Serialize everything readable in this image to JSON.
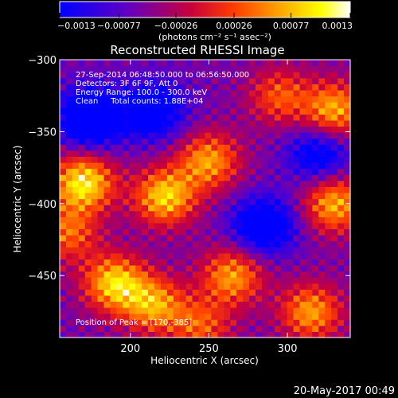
{
  "chart_data": {
    "type": "heatmap",
    "title": "Reconstructed RHESSI Image",
    "xlabel": "Heliocentric X (arcsec)",
    "ylabel": "Heliocentric Y (arcsec)",
    "xlim": [
      155,
      340
    ],
    "ylim": [
      -493,
      -300
    ],
    "x_ticks": [
      200,
      250,
      300
    ],
    "x_tick_labels": [
      "200",
      "250",
      "300"
    ],
    "y_ticks": [
      -300,
      -350,
      -400,
      -450
    ],
    "y_tick_labels": [
      "−300",
      "−350",
      "−400",
      "−450"
    ],
    "colorbar": {
      "range": [
        -0.0013,
        0.0013
      ],
      "tick_values": [
        -0.0013,
        -0.00077,
        -0.00026,
        0.00026,
        0.00077,
        0.0013
      ],
      "tick_labels": [
        "−0.0013",
        "−0.00077",
        "−0.00026",
        "0.00026",
        "0.00077",
        "0.0013"
      ],
      "unit_label": "(photons cm⁻² s⁻¹ asec⁻²)",
      "colors": [
        "#0000ff",
        "#5a00c8",
        "#c8003c",
        "#ff3c00",
        "#ffa000",
        "#ffff00",
        "#ffffff"
      ]
    },
    "annotations": [
      "27-Sep-2014 06:48:50.000 to 06:56:50.000",
      "Detectors: 3F 6F 9F, Att 0",
      "Energy Range: 100.0 - 300.0 keV",
      "Clean     Total counts: 1.88E+04"
    ],
    "peak_label": "Position of Peak = [170,-385]",
    "peak": [
      170,
      -385
    ],
    "sources": [
      {
        "x": 170,
        "y": -385,
        "intensity": 1.0
      },
      {
        "x": 222,
        "y": -395,
        "intensity": 0.9
      },
      {
        "x": 250,
        "y": -370,
        "intensity": 0.75
      },
      {
        "x": 190,
        "y": -455,
        "intensity": 0.9
      },
      {
        "x": 215,
        "y": -470,
        "intensity": 0.75
      },
      {
        "x": 265,
        "y": -450,
        "intensity": 0.75
      },
      {
        "x": 330,
        "y": -335,
        "intensity": 0.8
      },
      {
        "x": 330,
        "y": -400,
        "intensity": 0.8
      },
      {
        "x": 315,
        "y": -475,
        "intensity": 0.75
      },
      {
        "x": 295,
        "y": -325,
        "intensity": 0.55
      },
      {
        "x": 160,
        "y": -420,
        "intensity": 0.6
      },
      {
        "x": 245,
        "y": -485,
        "intensity": 0.55
      },
      {
        "x": 175,
        "y": -340,
        "intensity": -1.0
      },
      {
        "x": 215,
        "y": -335,
        "intensity": -0.7
      },
      {
        "x": 285,
        "y": -415,
        "intensity": -0.8
      },
      {
        "x": 320,
        "y": -365,
        "intensity": -0.6
      }
    ]
  },
  "footer": {
    "timestamp": "20-May-2017 00:49"
  }
}
